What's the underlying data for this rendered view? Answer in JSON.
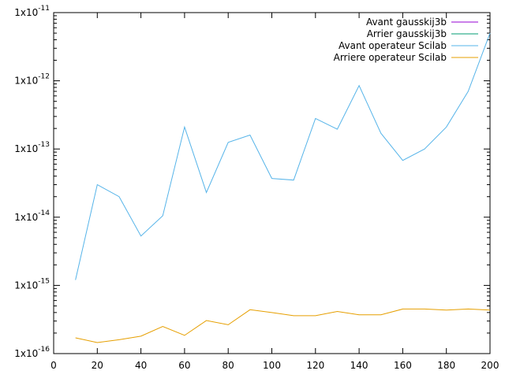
{
  "chart_data": {
    "type": "line",
    "title": "",
    "xlabel": "",
    "ylabel": "",
    "x_scale": "linear",
    "y_scale": "log",
    "xlim": [
      0,
      200
    ],
    "ylim": [
      1e-16,
      1e-11
    ],
    "grid": false,
    "legend_position": "top-right",
    "x_ticks": [
      "0",
      "20",
      "40",
      "60",
      "80",
      "100",
      "120",
      "140",
      "160",
      "180",
      "200"
    ],
    "y_ticks": [
      {
        "mantissa": "1x10",
        "exp": "-16"
      },
      {
        "mantissa": "1x10",
        "exp": "-15"
      },
      {
        "mantissa": "1x10",
        "exp": "-14"
      },
      {
        "mantissa": "1x10",
        "exp": "-13"
      },
      {
        "mantissa": "1x10",
        "exp": "-12"
      },
      {
        "mantissa": "1x10",
        "exp": "-11"
      }
    ],
    "series": [
      {
        "name": "Avant gausskij3b",
        "color": "#9400d3",
        "x": [],
        "values": []
      },
      {
        "name": "Arrier gausskij3b",
        "color": "#009e73",
        "x": [],
        "values": []
      },
      {
        "name": "Avant operateur Scilab",
        "color": "#56b4e9",
        "x": [
          10,
          20,
          30,
          40,
          50,
          60,
          70,
          80,
          90,
          100,
          110,
          120,
          130,
          140,
          150,
          160,
          170,
          180,
          190,
          200
        ],
        "values": [
          1.2e-15,
          3e-14,
          2e-14,
          5.3e-15,
          1.05e-14,
          2.1e-13,
          2.3e-14,
          1.25e-13,
          1.6e-13,
          3.7e-14,
          3.5e-14,
          2.8e-13,
          1.95e-13,
          8.5e-13,
          1.7e-13,
          6.8e-14,
          1e-13,
          2.1e-13,
          7e-13,
          5e-12
        ]
      },
      {
        "name": "Arriere operateur Scilab",
        "color": "#e69f00",
        "x": [
          10,
          20,
          30,
          40,
          50,
          60,
          70,
          80,
          90,
          100,
          110,
          120,
          130,
          140,
          150,
          160,
          170,
          180,
          190,
          200
        ],
        "values": [
          1.7e-16,
          1.45e-16,
          1.6e-16,
          1.8e-16,
          2.5e-16,
          1.85e-16,
          3.05e-16,
          2.65e-16,
          4.4e-16,
          4e-16,
          3.6e-16,
          3.6e-16,
          4.15e-16,
          3.7e-16,
          3.7e-16,
          4.5e-16,
          4.5e-16,
          4.35e-16,
          4.5e-16,
          4.35e-16
        ]
      }
    ]
  }
}
